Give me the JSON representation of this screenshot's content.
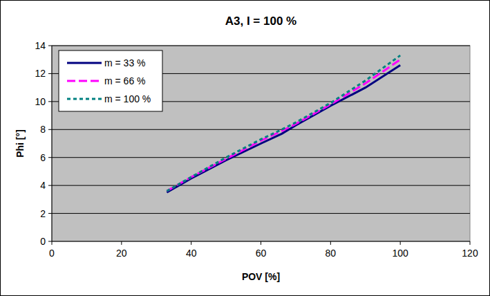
{
  "chart_data": {
    "type": "line",
    "title": "A3,  I = 100 %",
    "x_label": "POV [%]",
    "y_label": "Phi [°]",
    "x": [
      33,
      40,
      50,
      60,
      66,
      70,
      80,
      90,
      100
    ],
    "series": [
      {
        "name": "m = 33 %",
        "color": "#000080",
        "line_style": "solid",
        "values": [
          3.5,
          4.5,
          5.8,
          7.0,
          7.7,
          8.3,
          9.7,
          11.0,
          12.6
        ]
      },
      {
        "name": "m = 66 %",
        "color": "#ff00ff",
        "line_style": "dashed",
        "values": [
          3.6,
          4.6,
          5.9,
          7.2,
          7.9,
          8.4,
          9.8,
          11.3,
          13.0
        ]
      },
      {
        "name": "m = 100 %",
        "color": "#008080",
        "line_style": "dotted",
        "values": [
          3.6,
          4.6,
          6.0,
          7.3,
          8.0,
          8.5,
          9.9,
          11.5,
          13.3
        ]
      }
    ],
    "xlim": [
      0,
      120
    ],
    "xticks": [
      0,
      20,
      40,
      60,
      80,
      100,
      120
    ],
    "ylim": [
      0,
      14
    ],
    "yticks": [
      0,
      2,
      4,
      6,
      8,
      10,
      12,
      14
    ],
    "grid": true,
    "legend": "upper left"
  }
}
